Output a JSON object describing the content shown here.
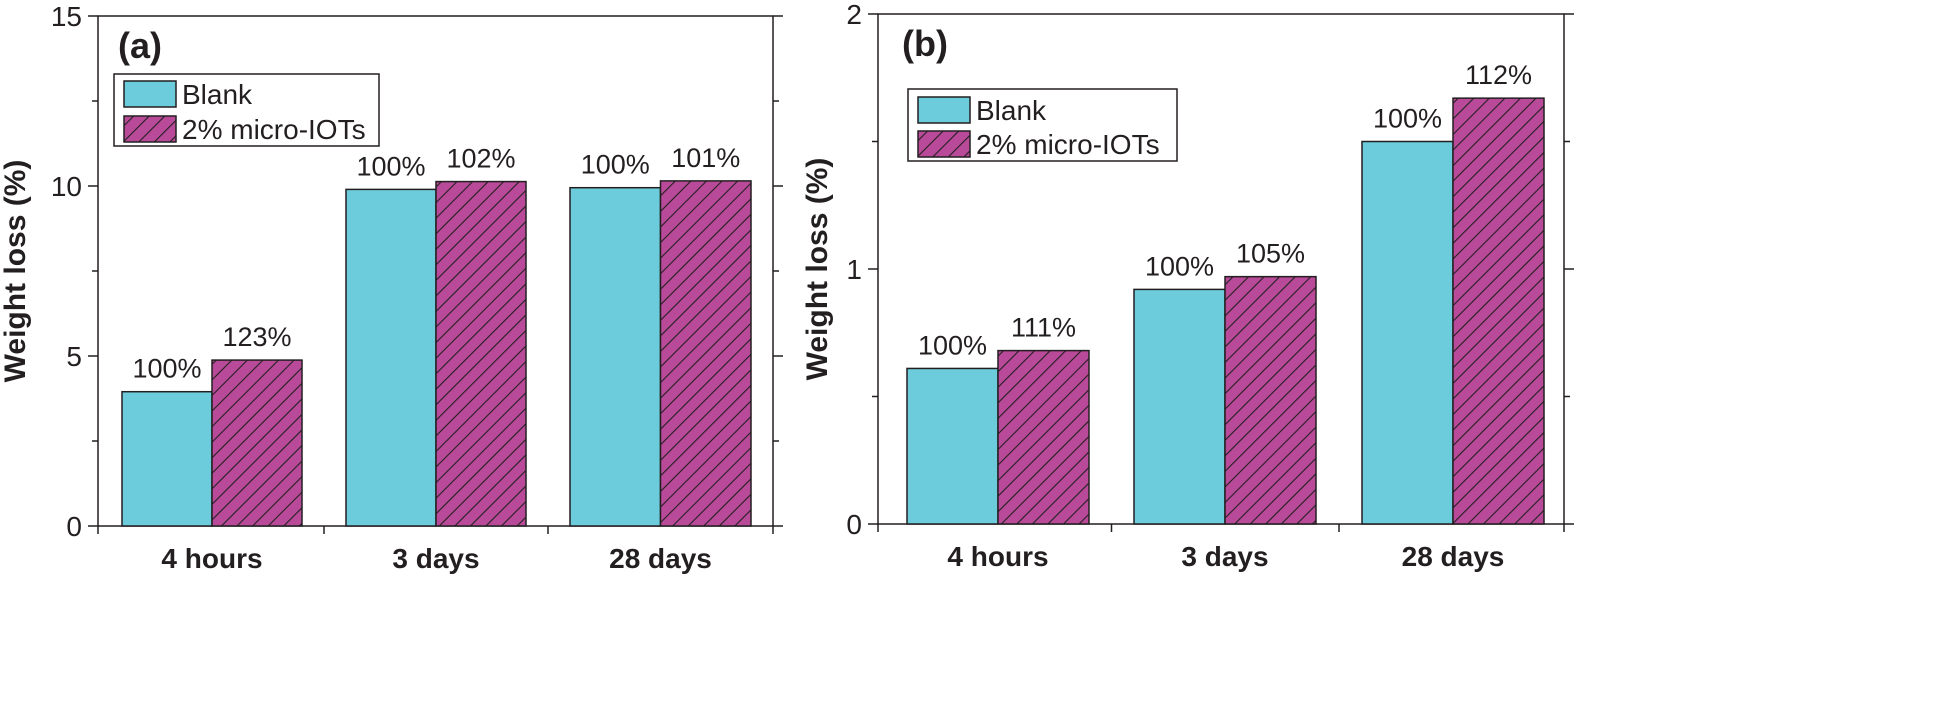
{
  "colors": {
    "blank": "#6dccdc",
    "iots": "#b94a9a",
    "hatch": "#231f20",
    "axis": "#231f20"
  },
  "chart_data": [
    {
      "type": "bar",
      "title": "(a)",
      "xlabel": "",
      "ylabel": "Weight loss (%)",
      "ylim": [
        0,
        15
      ],
      "yticks": [
        0,
        5,
        10,
        15
      ],
      "yminor_step": 2.5,
      "grid": false,
      "legend_position": "top-left",
      "categories": [
        "4 hours",
        "3 days",
        "28 days"
      ],
      "series": [
        {
          "name": "Blank",
          "values": [
            3.95,
            9.9,
            9.95
          ],
          "labels": [
            "100%",
            "100%",
            "100%"
          ]
        },
        {
          "name": "2% micro-IOTs",
          "values": [
            4.88,
            10.13,
            10.15
          ],
          "labels": [
            "123%",
            "102%",
            "101%"
          ]
        }
      ]
    },
    {
      "type": "bar",
      "title": "(b)",
      "xlabel": "",
      "ylabel": "Weight loss (%)",
      "ylim": [
        0,
        2
      ],
      "yticks": [
        0,
        1,
        2
      ],
      "yminor_step": 0.5,
      "grid": false,
      "legend_position": "top-left",
      "categories": [
        "4 hours",
        "3 days",
        "28 days"
      ],
      "series": [
        {
          "name": "Blank",
          "values": [
            0.61,
            0.92,
            1.5
          ],
          "labels": [
            "100%",
            "100%",
            "100%"
          ]
        },
        {
          "name": "2% micro-IOTs",
          "values": [
            0.68,
            0.97,
            1.67
          ],
          "labels": [
            "111%",
            "105%",
            "112%"
          ]
        }
      ]
    }
  ]
}
